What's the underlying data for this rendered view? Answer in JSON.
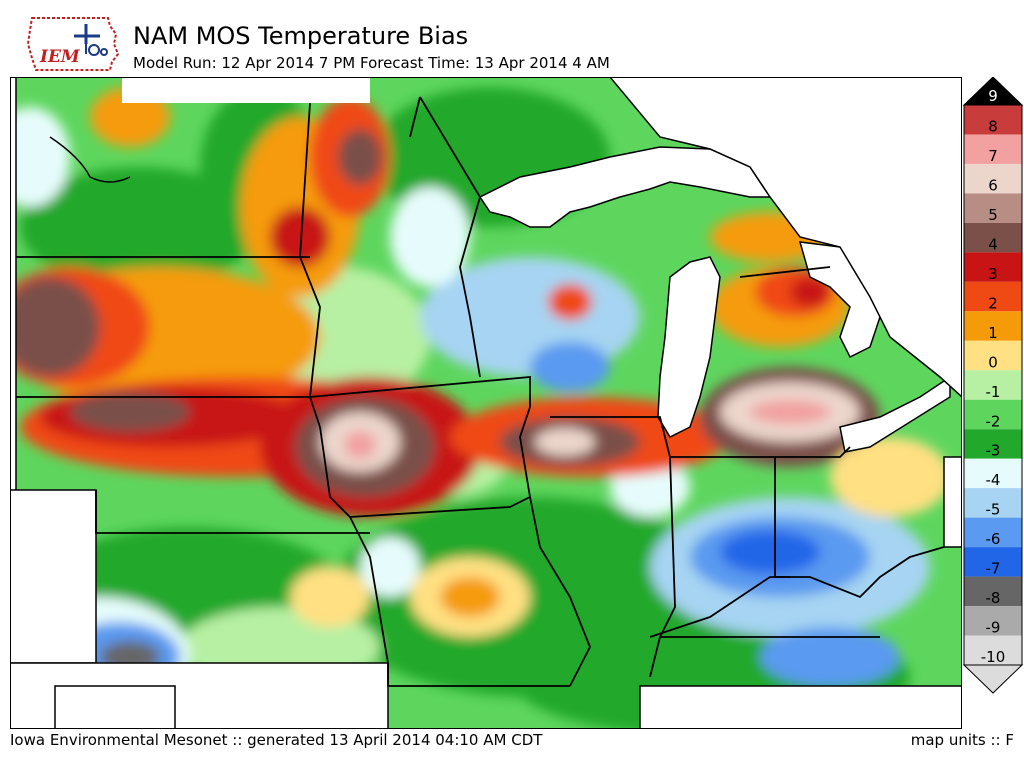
{
  "header": {
    "logo_text": "IEM",
    "title": "NAM MOS Temperature Bias",
    "subtitle": "Model Run: 12 Apr 2014 7 PM Forecast Time: 13 Apr 2014 4 AM"
  },
  "footer": {
    "credit": "Iowa Environmental Mesonet :: generated 13 April 2014 04:10 AM CDT",
    "units": "map units :: F"
  },
  "legend": {
    "levels": [
      {
        "label": "9",
        "color": "#000000"
      },
      {
        "label": "8",
        "color": "#c83c3c"
      },
      {
        "label": "7",
        "color": "#f2a0a0"
      },
      {
        "label": "6",
        "color": "#ecd6cc"
      },
      {
        "label": "5",
        "color": "#b88e84"
      },
      {
        "label": "4",
        "color": "#7a5048"
      },
      {
        "label": "3",
        "color": "#c81414"
      },
      {
        "label": "2",
        "color": "#f04a14"
      },
      {
        "label": "1",
        "color": "#f59b0a"
      },
      {
        "label": "0",
        "color": "#ffe082"
      },
      {
        "label": "-1",
        "color": "#b7f0a3"
      },
      {
        "label": "-2",
        "color": "#5ed65e"
      },
      {
        "label": "-3",
        "color": "#22a82a"
      },
      {
        "label": "-4",
        "color": "#e6fcfc"
      },
      {
        "label": "-5",
        "color": "#a6d4f2"
      },
      {
        "label": "-6",
        "color": "#5a9af0"
      },
      {
        "label": "-7",
        "color": "#2266e8"
      },
      {
        "label": "-8",
        "color": "#666666"
      },
      {
        "label": "-9",
        "color": "#aaaaaa"
      },
      {
        "label": "-10",
        "color": "#dcdcdc"
      }
    ]
  }
}
